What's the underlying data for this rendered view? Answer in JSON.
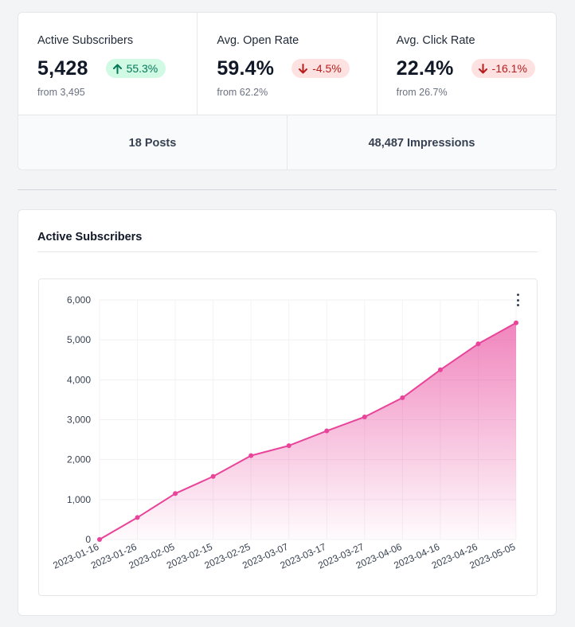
{
  "stats": [
    {
      "label": "Active Subscribers",
      "value": "5,428",
      "change": "55.3%",
      "direction": "up",
      "from": "from 3,495"
    },
    {
      "label": "Avg. Open Rate",
      "value": "59.4%",
      "change": "-4.5%",
      "direction": "down",
      "from": "from 62.2%"
    },
    {
      "label": "Avg. Click Rate",
      "value": "22.4%",
      "change": "-16.1%",
      "direction": "down",
      "from": "from 26.7%"
    }
  ],
  "totals": {
    "posts": "18 Posts",
    "impressions": "48,487 Impressions"
  },
  "chart_section": {
    "title": "Active Subscribers"
  },
  "colors": {
    "line": "#e8449a",
    "up_bg": "#d1fae5",
    "down_bg": "#fee2e2"
  },
  "chart_data": {
    "type": "area",
    "title": "",
    "xlabel": "",
    "ylabel": "",
    "ylim": [
      0,
      6000
    ],
    "y_ticks": [
      "0",
      "1,000",
      "2,000",
      "3,000",
      "4,000",
      "5,000",
      "6,000"
    ],
    "x": [
      "2023-01-16",
      "2023-01-26",
      "2023-02-05",
      "2023-02-15",
      "2023-02-25",
      "2023-03-07",
      "2023-03-17",
      "2023-03-27",
      "2023-04-06",
      "2023-04-16",
      "2023-04-26",
      "2023-05-05"
    ],
    "values": [
      0,
      550,
      1150,
      1580,
      2100,
      2350,
      2720,
      3070,
      3550,
      4250,
      4900,
      5428
    ],
    "grid": true,
    "legend": "none"
  }
}
